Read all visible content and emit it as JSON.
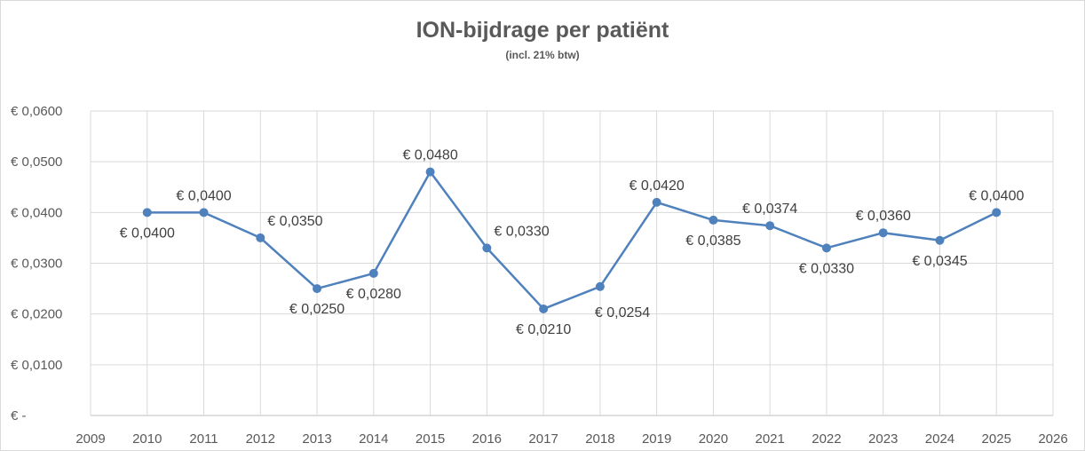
{
  "chart_data": {
    "type": "scatter",
    "title": "ION-bijdrage per patiënt",
    "subtitle": "(incl. 21% btw)",
    "xlabel": "",
    "ylabel": "",
    "xlim": [
      2009,
      2026
    ],
    "ylim": [
      0,
      0.06
    ],
    "x_ticks": [
      "2009",
      "2010",
      "2011",
      "2012",
      "2013",
      "2014",
      "2015",
      "2016",
      "2017",
      "2018",
      "2019",
      "2020",
      "2021",
      "2022",
      "2023",
      "2024",
      "2025",
      "2026"
    ],
    "y_ticks": [
      "€ -",
      "€ 0,0100",
      "€ 0,0200",
      "€ 0,0300",
      "€ 0,0400",
      "€ 0,0500",
      "€ 0,0600"
    ],
    "grid": true,
    "line_color": "#4f81bd",
    "series": [
      {
        "x": [
          2010,
          2011,
          2012,
          2013,
          2014,
          2015,
          2016,
          2017,
          2018,
          2019,
          2020,
          2021,
          2022,
          2023,
          2024,
          2025
        ],
        "y": [
          0.04,
          0.04,
          0.035,
          0.025,
          0.028,
          0.048,
          0.033,
          0.021,
          0.0254,
          0.042,
          0.0385,
          0.0374,
          0.033,
          0.036,
          0.0345,
          0.04
        ],
        "labels": [
          "€ 0,0400",
          "€ 0,0400",
          "€ 0,0350",
          "€ 0,0250",
          "€ 0,0280",
          "€ 0,0480",
          "€ 0,0330",
          "€ 0,0210",
          "€ 0,0254",
          "€ 0,0420",
          "€ 0,0385",
          "€ 0,0374",
          "€ 0,0330",
          "€ 0,0360",
          "€ 0,0345",
          "€ 0,0400"
        ]
      }
    ]
  }
}
